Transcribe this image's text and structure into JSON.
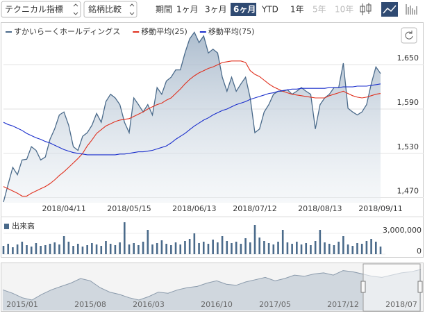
{
  "toolbar": {
    "indicator": "テクニカル指標",
    "compare": "銘柄比較",
    "period_label": "期間",
    "periods": [
      "1ヶ月",
      "3ヶ月",
      "6ヶ月",
      "YTD",
      "1年",
      "5年",
      "10年"
    ],
    "selected": "6ヶ月",
    "disabled": [
      "5年",
      "10年"
    ]
  },
  "chart_data": [
    {
      "type": "line",
      "grid": true,
      "categories": [
        null,
        null,
        null,
        null,
        null,
        null,
        null,
        null,
        null,
        null,
        null,
        null,
        null,
        "2018/04/11",
        null,
        null,
        null,
        null,
        null,
        null,
        null,
        null,
        null,
        null,
        null,
        null,
        null,
        "2018/05/15",
        null,
        null,
        null,
        null,
        null,
        null,
        null,
        null,
        null,
        null,
        null,
        null,
        null,
        "2018/06/13",
        null,
        null,
        null,
        null,
        null,
        null,
        null,
        null,
        null,
        null,
        null,
        null,
        "2018/07/12",
        null,
        null,
        null,
        null,
        null,
        null,
        null,
        null,
        null,
        null,
        null,
        null,
        null,
        "2018/08/13",
        null,
        null,
        null,
        null,
        null,
        null,
        null,
        null,
        null,
        null,
        null,
        null,
        "2018/09/11"
      ],
      "series": [
        {
          "name": "すかいらーくホールディングス",
          "color": "#4a6a8a",
          "fill": true,
          "values": [
            1464,
            1488,
            1511,
            1501,
            1521,
            1522,
            1539,
            1534,
            1521,
            1525,
            1549,
            1563,
            1582,
            1586,
            1568,
            1539,
            1534,
            1553,
            1558,
            1568,
            1584,
            1572,
            1600,
            1610,
            1605,
            1596,
            1572,
            1558,
            1605,
            1596,
            1586,
            1596,
            1582,
            1619,
            1610,
            1628,
            1633,
            1643,
            1643,
            1666,
            1685,
            1694,
            1680,
            1689,
            1666,
            1671,
            1666,
            1633,
            1614,
            1633,
            1614,
            1624,
            1633,
            1605,
            1558,
            1563,
            1586,
            1596,
            1610,
            1614,
            1614,
            1616,
            1610,
            1614,
            1619,
            1614,
            1610,
            1563,
            1596,
            1605,
            1610,
            1619,
            1619,
            1652,
            1591,
            1586,
            1582,
            1586,
            1596,
            1624,
            1647,
            1638
          ]
        },
        {
          "name": "移動平均(25)",
          "color": "#e0301e",
          "fill": false,
          "values": [
            1485,
            1482,
            1479,
            1476,
            1472,
            1472,
            1476,
            1479,
            1482,
            1485,
            1489,
            1494,
            1500,
            1505,
            1511,
            1517,
            1523,
            1530,
            1540,
            1548,
            1557,
            1562,
            1567,
            1570,
            1573,
            1575,
            1576,
            1577,
            1580,
            1583,
            1586,
            1590,
            1593,
            1596,
            1598,
            1602,
            1605,
            1611,
            1617,
            1624,
            1630,
            1635,
            1639,
            1642,
            1645,
            1647,
            1650,
            1653,
            1654,
            1655,
            1655,
            1655,
            1653,
            1642,
            1637,
            1634,
            1629,
            1624,
            1620,
            1617,
            1614,
            1612,
            1610,
            1609,
            1608,
            1607,
            1606,
            1605,
            1605,
            1605,
            1608,
            1610,
            1612,
            1614,
            1611,
            1608,
            1606,
            1605,
            1606,
            1608,
            1610,
            1611
          ]
        },
        {
          "name": "移動平均(75)",
          "color": "#1a2ecc",
          "fill": false,
          "values": [
            1572,
            1569,
            1567,
            1564,
            1561,
            1557,
            1554,
            1551,
            1549,
            1546,
            1544,
            1541,
            1538,
            1535,
            1533,
            1531,
            1530,
            1529,
            1528,
            1528,
            1528,
            1528,
            1528,
            1528,
            1528,
            1529,
            1529,
            1530,
            1531,
            1532,
            1532,
            1533,
            1534,
            1536,
            1538,
            1540,
            1544,
            1549,
            1553,
            1557,
            1562,
            1567,
            1571,
            1575,
            1578,
            1582,
            1585,
            1588,
            1590,
            1593,
            1596,
            1598,
            1600,
            1603,
            1605,
            1607,
            1609,
            1611,
            1612,
            1614,
            1615,
            1616,
            1617,
            1617,
            1618,
            1618,
            1618,
            1618,
            1618,
            1618,
            1619,
            1619,
            1619,
            1620,
            1620,
            1620,
            1621,
            1621,
            1621,
            1622,
            1623,
            1624
          ]
        }
      ],
      "ylim": [
        1463,
        1700
      ],
      "yticks": [
        {
          "value": 1470,
          "label": "1,470"
        },
        {
          "value": 1530,
          "label": "1,530"
        },
        {
          "value": 1590,
          "label": "1,590"
        },
        {
          "value": 1650,
          "label": "1,650"
        }
      ]
    },
    {
      "type": "bar",
      "title": "出来高",
      "color": "#4a6a8a",
      "values": [
        1200000,
        1500000,
        1000000,
        1400000,
        1800000,
        1300000,
        1100000,
        1600000,
        1200000,
        1300000,
        1500000,
        1700000,
        1400000,
        2600000,
        1800000,
        1200000,
        1500000,
        1100000,
        1300000,
        1600000,
        1400000,
        1200000,
        1900000,
        1500000,
        1300000,
        1700000,
        4600000,
        1400000,
        1600000,
        1300000,
        1800000,
        3500000,
        1400000,
        1600000,
        2000000,
        1500000,
        1300000,
        1700000,
        1400000,
        1900000,
        2200000,
        3000000,
        1600000,
        1800000,
        1500000,
        2100000,
        1700000,
        2600000,
        1900000,
        1600000,
        1800000,
        1500000,
        2300000,
        1700000,
        4200000,
        2400000,
        1900000,
        1600000,
        1400000,
        1800000,
        3500000,
        1700000,
        1500000,
        1800000,
        1400000,
        1600000,
        1300000,
        1900000,
        3500000,
        1700000,
        1500000,
        1300000,
        1800000,
        2600000,
        1400000,
        1200000,
        1600000,
        1500000,
        1900000,
        2200000,
        1800000,
        1100000
      ],
      "ylim": [
        0,
        4800000
      ],
      "yticks": [
        0,
        {
          "value": 3000000,
          "label": "3,000,000"
        }
      ]
    },
    {
      "type": "area",
      "color": "#8a9aab",
      "categories": [
        null,
        null,
        "2015/01",
        null,
        null,
        null,
        null,
        null,
        null,
        "2015/08",
        null,
        null,
        null,
        null,
        null,
        "2016/03",
        null,
        null,
        null,
        null,
        null,
        null,
        "2016/10",
        null,
        null,
        null,
        null,
        null,
        "2017/05",
        null,
        null,
        null,
        null,
        null,
        null,
        "2017/12",
        null,
        null,
        null,
        null,
        null,
        "2018/07",
        null,
        null
      ],
      "values": [
        1420,
        1390,
        1350,
        1330,
        1380,
        1420,
        1450,
        1480,
        1520,
        1500,
        1440,
        1400,
        1380,
        1350,
        1330,
        1360,
        1400,
        1390,
        1420,
        1440,
        1450,
        1480,
        1500,
        1470,
        1460,
        1490,
        1510,
        1530,
        1500,
        1520,
        1550,
        1540,
        1560,
        1570,
        1550,
        1590,
        1580,
        1560,
        1540,
        1530,
        1550,
        1570,
        1580,
        1600
      ]
    }
  ]
}
